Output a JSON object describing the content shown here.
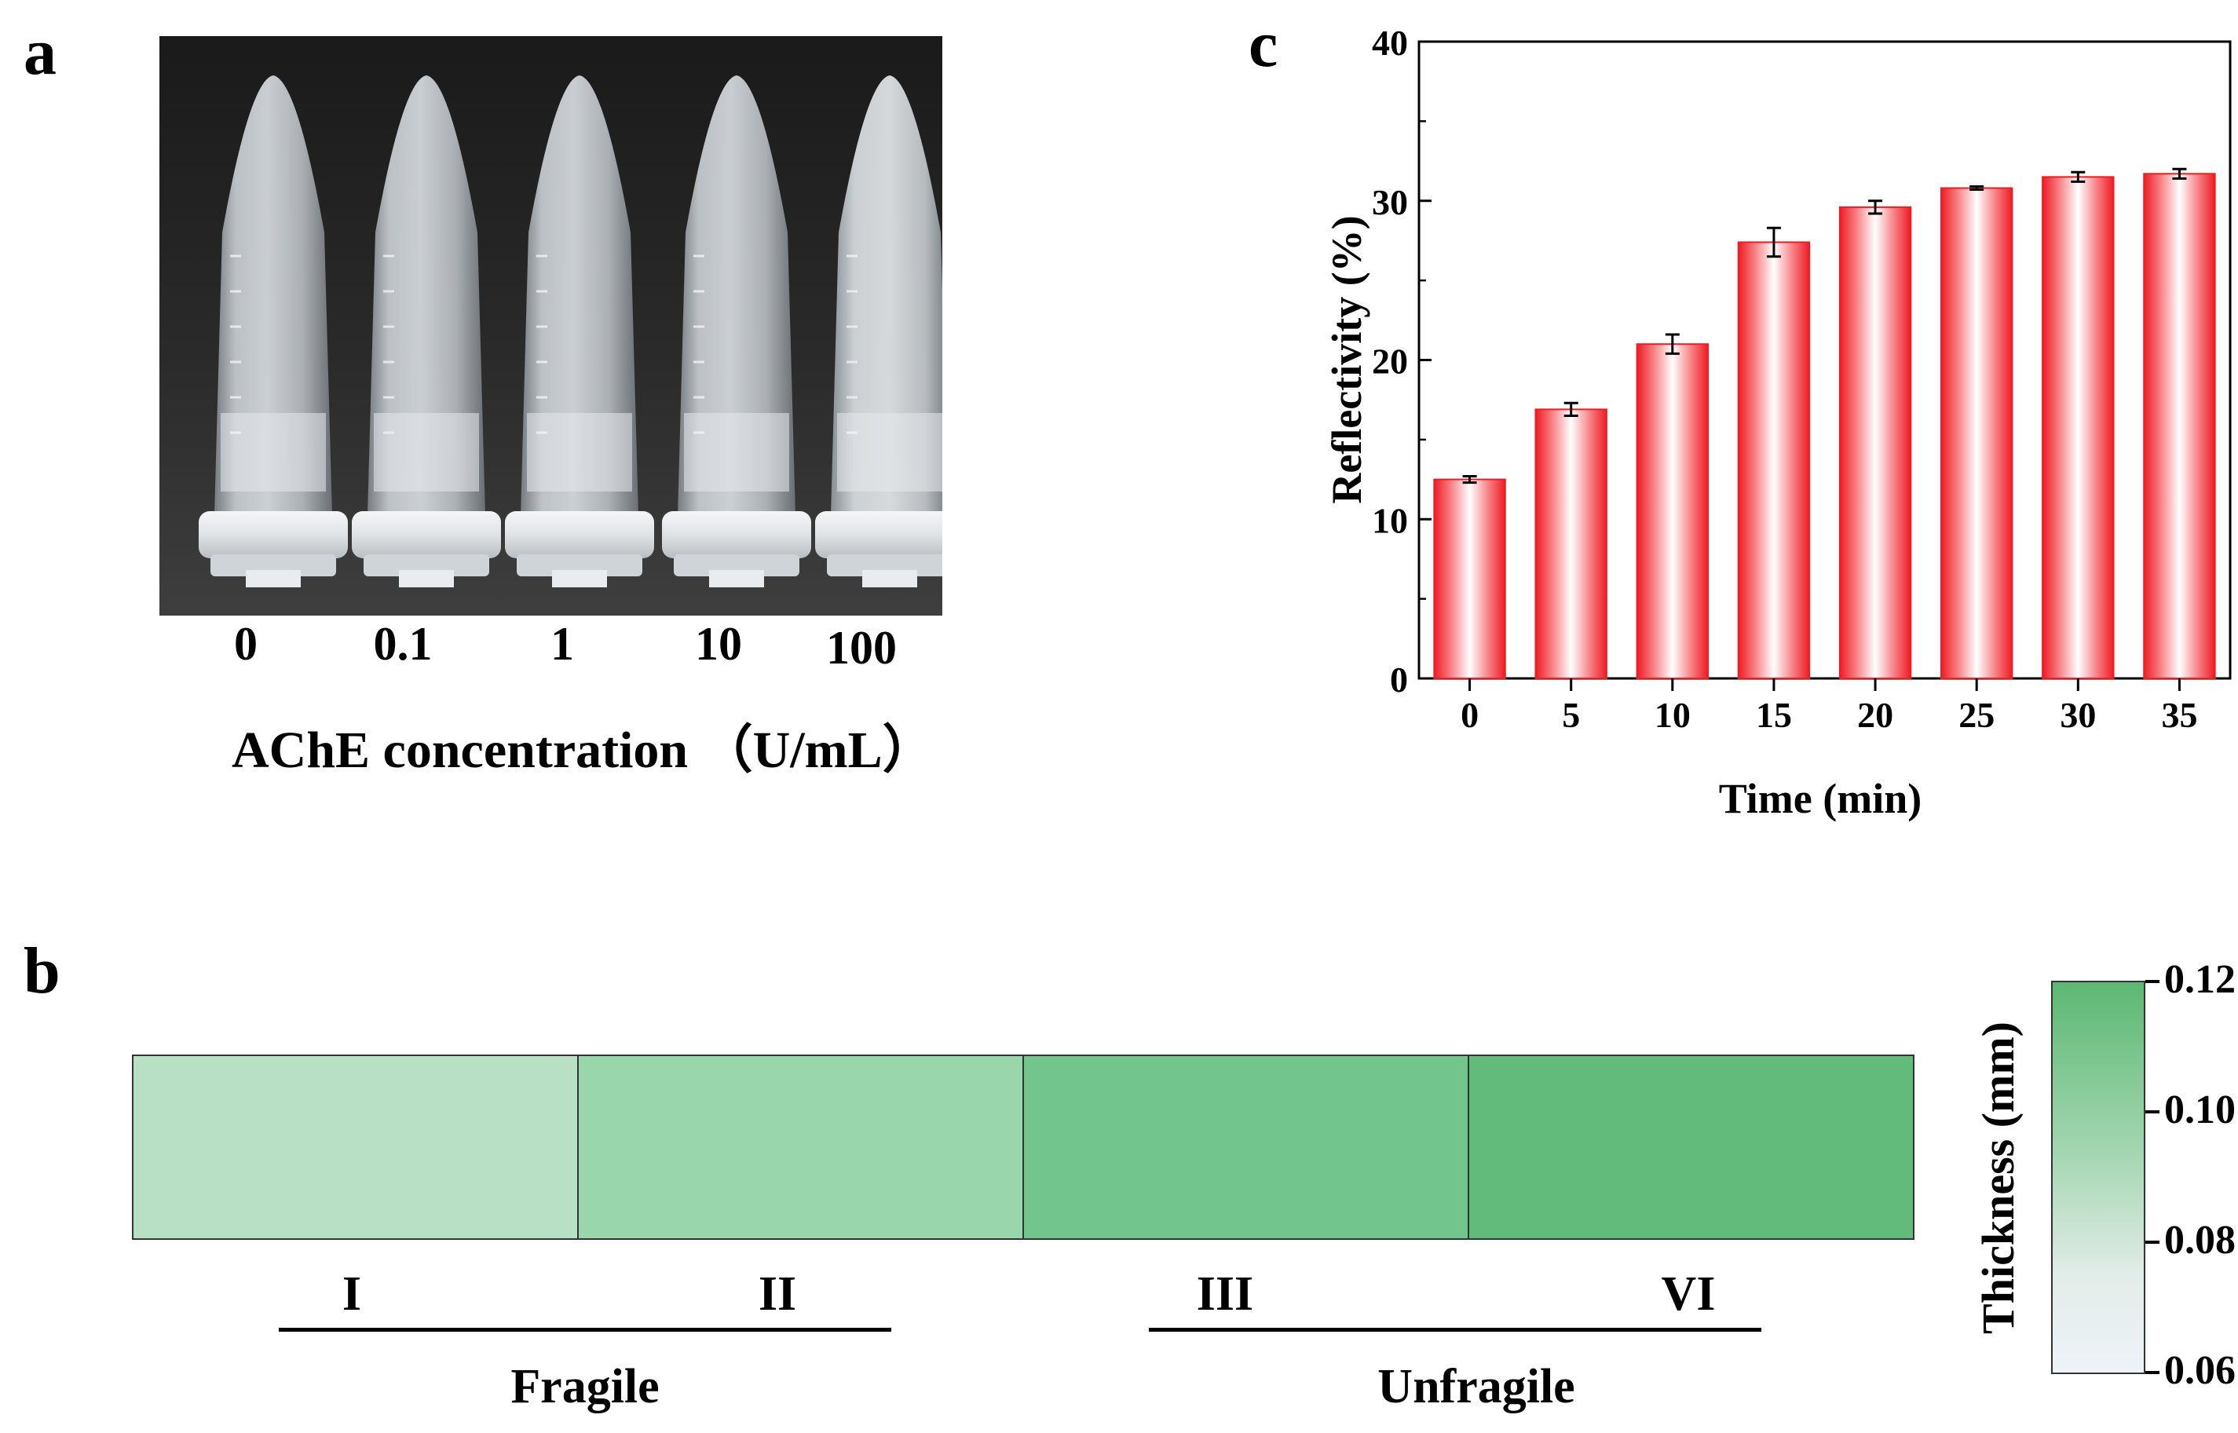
{
  "panels": {
    "a": {
      "label": "a",
      "concentrations": [
        "0",
        "0.1",
        "1",
        "10",
        "100"
      ],
      "axis_title": "AChE concentration （U/mL）"
    },
    "b": {
      "label": "b",
      "segments": [
        {
          "label": "I",
          "thickness_mm": 0.085,
          "color": "#b8e0c4"
        },
        {
          "label": "II",
          "thickness_mm": 0.095,
          "color": "#9ad6ac"
        },
        {
          "label": "III",
          "thickness_mm": 0.108,
          "color": "#72c58c"
        },
        {
          "label": "VI",
          "thickness_mm": 0.115,
          "color": "#62bb7b"
        }
      ],
      "groups": [
        "Fragile",
        "Unfragile"
      ],
      "colorbar": {
        "title": "Thickness (mm)",
        "ticks": [
          "0.12",
          "0.10",
          "0.08",
          "0.06"
        ],
        "range": [
          0.06,
          0.12
        ],
        "color_low": "#eef3f8",
        "color_high": "#5cb873"
      }
    },
    "c": {
      "label": "c"
    }
  },
  "chart_data": {
    "type": "bar",
    "title": "",
    "xlabel": "Time (min)",
    "ylabel": "Reflectivity (%)",
    "categories": [
      "0",
      "5",
      "10",
      "15",
      "20",
      "25",
      "30",
      "35"
    ],
    "values": [
      12.5,
      16.9,
      21.0,
      27.4,
      29.6,
      30.8,
      31.5,
      31.7
    ],
    "errors": [
      0.2,
      0.4,
      0.6,
      0.9,
      0.4,
      0.1,
      0.3,
      0.3
    ],
    "ylim": [
      0,
      40
    ],
    "yticks": [
      0,
      10,
      20,
      30,
      40
    ],
    "bar_color": "#ee1c24"
  }
}
